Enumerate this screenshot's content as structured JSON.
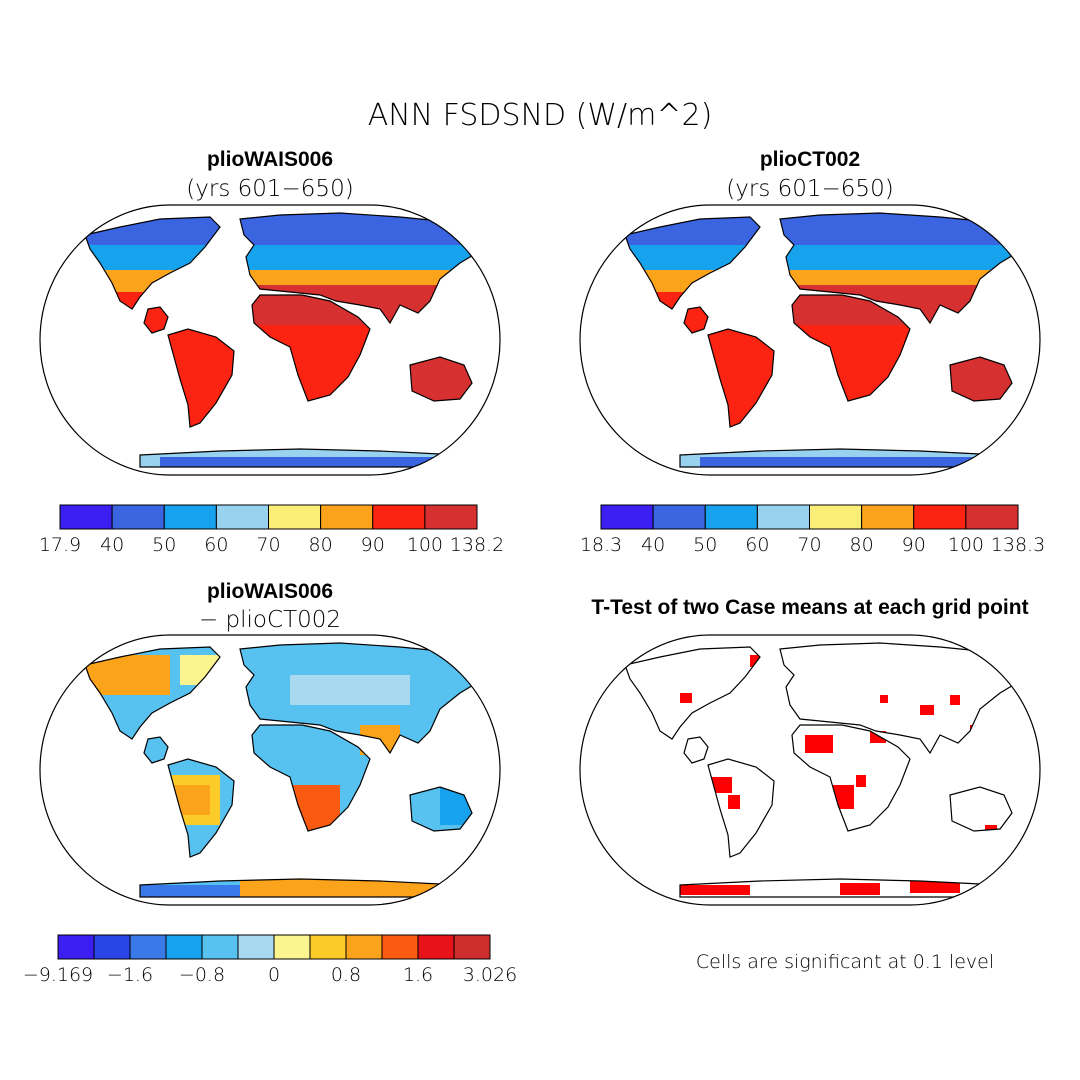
{
  "figure": {
    "title": "ANN FSDSND (W/m^2)"
  },
  "panels": [
    {
      "id": "case1",
      "title": "plioWAIS006",
      "subtitle": "(yrs 601−650)",
      "colorbar": {
        "colors": [
          "#3b1ef2",
          "#3a64e0",
          "#17a2ee",
          "#98d2ee",
          "#fbee78",
          "#fba31b",
          "#fb2311",
          "#d63030"
        ],
        "labels": [
          "17.9",
          "40",
          "50",
          "60",
          "70",
          "80",
          "90",
          "100",
          "138.2"
        ]
      }
    },
    {
      "id": "case2",
      "title": "plioCT002",
      "subtitle": "(yrs 601−650)",
      "colorbar": {
        "colors": [
          "#3b1ef2",
          "#3a64e0",
          "#17a2ee",
          "#98d2ee",
          "#fbee78",
          "#fba31b",
          "#fb2311",
          "#d63030"
        ],
        "labels": [
          "18.3",
          "40",
          "50",
          "60",
          "70",
          "80",
          "90",
          "100",
          "138.3"
        ]
      }
    },
    {
      "id": "diff",
      "title": "plioWAIS006",
      "subtitle": "− plioCT002",
      "colorbar": {
        "colors": [
          "#3b1ef2",
          "#2a45e6",
          "#3a7ae8",
          "#17a2ee",
          "#57c1f0",
          "#a9d9ef",
          "#fcf48e",
          "#fbcb2a",
          "#fba31b",
          "#fb5a11",
          "#e8121a",
          "#cc2d2d"
        ],
        "labels": [
          "−9.169",
          "−1.6",
          "−0.8",
          "0",
          "0.8",
          "1.6",
          "3.026"
        ]
      }
    },
    {
      "id": "ttest",
      "title": "T-Test of two Case means at each grid point",
      "note": "Cells are significant at 0.1 level",
      "significance_color": "#ff0000"
    }
  ]
}
